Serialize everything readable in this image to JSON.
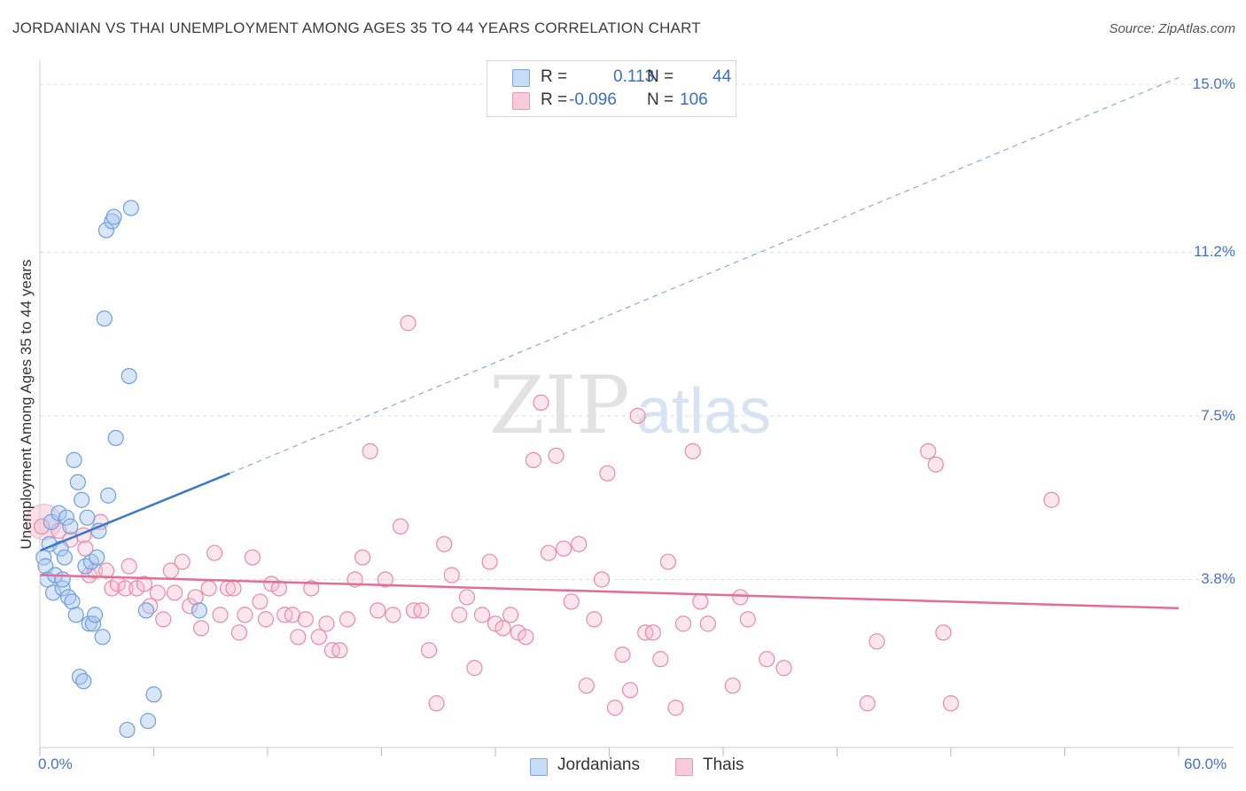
{
  "header": {
    "title": "JORDANIAN VS THAI UNEMPLOYMENT AMONG AGES 35 TO 44 YEARS CORRELATION CHART",
    "source": "Source: ZipAtlas.com"
  },
  "watermark": {
    "zip": "ZIP",
    "atlas": "atlas"
  },
  "legend": {
    "rows": [
      {
        "r_label": "R =",
        "r_value": "0.113",
        "n_label": "N =",
        "n_value": "44"
      },
      {
        "r_label": "R =",
        "r_value": "-0.096",
        "n_label": "N =",
        "n_value": "106"
      }
    ]
  },
  "bottom_legend": {
    "jordanians": "Jordanians",
    "thais": "Thais"
  },
  "colors": {
    "jordanians_fill": "#a9c8f0",
    "jordanians_stroke": "#6f9fdc",
    "jordanians_line": "#3a78d0",
    "thais_fill": "#f5b8cc",
    "thais_stroke": "#e88aa9",
    "thais_line": "#e06e98",
    "axis_label": "#4472c4",
    "grid": "#dddddd"
  },
  "chart_data": {
    "type": "scatter",
    "title": "JORDANIAN VS THAI UNEMPLOYMENT AMONG AGES 35 TO 44 YEARS CORRELATION CHART",
    "xlabel": "",
    "ylabel": "Unemployment Among Ages 35 to 44 years",
    "xlim": [
      0,
      60
    ],
    "ylim": [
      0,
      15.4
    ],
    "x_tick_labels": [
      "0.0%",
      "60.0%"
    ],
    "y_ticks": [
      3.8,
      7.5,
      11.2,
      15.0
    ],
    "y_tick_labels": [
      "3.8%",
      "7.5%",
      "11.2%",
      "15.0%"
    ],
    "grid": true,
    "legend_position": "top-center",
    "series": [
      {
        "name": "Jordanians",
        "R": 0.113,
        "N": 44,
        "trend": {
          "x": [
            0,
            10
          ],
          "y": [
            4.45,
            6.2
          ],
          "extended_to": [
            60,
            15.15
          ]
        },
        "points": [
          [
            0.2,
            4.3
          ],
          [
            0.3,
            4.1
          ],
          [
            0.4,
            3.8
          ],
          [
            0.5,
            4.6
          ],
          [
            0.6,
            5.1
          ],
          [
            0.7,
            3.5
          ],
          [
            0.8,
            3.9
          ],
          [
            1.0,
            5.3
          ],
          [
            1.1,
            4.5
          ],
          [
            1.2,
            3.6
          ],
          [
            1.3,
            4.3
          ],
          [
            1.4,
            5.2
          ],
          [
            1.5,
            3.4
          ],
          [
            1.6,
            5.0
          ],
          [
            1.7,
            3.3
          ],
          [
            1.8,
            6.5
          ],
          [
            1.9,
            3.0
          ],
          [
            2.0,
            6.0
          ],
          [
            2.1,
            1.6
          ],
          [
            2.2,
            5.6
          ],
          [
            2.3,
            1.5
          ],
          [
            2.4,
            4.1
          ],
          [
            2.5,
            5.2
          ],
          [
            2.6,
            2.8
          ],
          [
            2.7,
            4.2
          ],
          [
            2.8,
            2.8
          ],
          [
            2.9,
            3.0
          ],
          [
            3.0,
            4.3
          ],
          [
            3.1,
            4.9
          ],
          [
            3.3,
            2.5
          ],
          [
            3.4,
            9.7
          ],
          [
            3.5,
            11.7
          ],
          [
            3.6,
            5.7
          ],
          [
            3.8,
            11.9
          ],
          [
            3.9,
            12.0
          ],
          [
            4.0,
            7.0
          ],
          [
            4.6,
            0.4
          ],
          [
            4.7,
            8.4
          ],
          [
            4.8,
            12.2
          ],
          [
            5.6,
            3.1
          ],
          [
            5.7,
            0.6
          ],
          [
            6.0,
            1.2
          ],
          [
            8.4,
            3.1
          ],
          [
            1.2,
            3.8
          ]
        ]
      },
      {
        "name": "Thais",
        "R": -0.096,
        "N": 106,
        "trend": {
          "x": [
            0,
            60
          ],
          "y": [
            3.9,
            3.15
          ]
        },
        "points": [
          [
            0.1,
            5.0
          ],
          [
            1.0,
            4.9
          ],
          [
            1.6,
            4.7
          ],
          [
            2.3,
            4.8
          ],
          [
            2.4,
            4.5
          ],
          [
            2.6,
            3.9
          ],
          [
            2.9,
            4.0
          ],
          [
            3.2,
            5.1
          ],
          [
            3.5,
            4.0
          ],
          [
            3.8,
            3.6
          ],
          [
            4.1,
            3.7
          ],
          [
            4.5,
            3.6
          ],
          [
            4.7,
            4.1
          ],
          [
            5.1,
            3.6
          ],
          [
            5.5,
            3.7
          ],
          [
            5.8,
            3.2
          ],
          [
            6.2,
            3.5
          ],
          [
            6.5,
            2.9
          ],
          [
            6.9,
            4.0
          ],
          [
            7.1,
            3.5
          ],
          [
            7.5,
            4.2
          ],
          [
            7.9,
            3.2
          ],
          [
            8.2,
            3.4
          ],
          [
            8.5,
            2.7
          ],
          [
            8.9,
            3.6
          ],
          [
            9.2,
            4.4
          ],
          [
            9.5,
            3.0
          ],
          [
            9.9,
            3.6
          ],
          [
            10.2,
            3.6
          ],
          [
            10.5,
            2.6
          ],
          [
            10.8,
            3.0
          ],
          [
            11.2,
            4.3
          ],
          [
            11.6,
            3.3
          ],
          [
            11.9,
            2.9
          ],
          [
            12.2,
            3.7
          ],
          [
            12.6,
            3.6
          ],
          [
            12.9,
            3.0
          ],
          [
            13.3,
            3.0
          ],
          [
            13.6,
            2.5
          ],
          [
            14.0,
            2.9
          ],
          [
            14.3,
            3.6
          ],
          [
            14.7,
            2.5
          ],
          [
            15.1,
            2.8
          ],
          [
            15.4,
            2.2
          ],
          [
            15.8,
            2.2
          ],
          [
            16.2,
            2.9
          ],
          [
            16.6,
            3.8
          ],
          [
            17.0,
            4.3
          ],
          [
            17.4,
            6.7
          ],
          [
            17.8,
            3.1
          ],
          [
            18.2,
            3.8
          ],
          [
            18.6,
            3.0
          ],
          [
            19.0,
            5.0
          ],
          [
            19.4,
            9.6
          ],
          [
            19.7,
            3.1
          ],
          [
            20.1,
            3.1
          ],
          [
            20.5,
            2.2
          ],
          [
            20.9,
            1.0
          ],
          [
            21.3,
            4.6
          ],
          [
            21.7,
            3.9
          ],
          [
            22.1,
            3.0
          ],
          [
            22.5,
            3.4
          ],
          [
            22.9,
            1.8
          ],
          [
            23.3,
            3.0
          ],
          [
            23.7,
            4.2
          ],
          [
            24.0,
            2.8
          ],
          [
            24.4,
            2.7
          ],
          [
            24.8,
            3.0
          ],
          [
            25.2,
            2.6
          ],
          [
            25.6,
            2.5
          ],
          [
            26.0,
            6.5
          ],
          [
            26.4,
            7.8
          ],
          [
            26.8,
            4.4
          ],
          [
            27.2,
            6.6
          ],
          [
            27.6,
            4.5
          ],
          [
            28.0,
            3.3
          ],
          [
            28.4,
            4.6
          ],
          [
            28.8,
            1.4
          ],
          [
            29.2,
            2.9
          ],
          [
            29.6,
            3.8
          ],
          [
            29.9,
            6.2
          ],
          [
            30.3,
            0.9
          ],
          [
            30.7,
            2.1
          ],
          [
            31.1,
            1.3
          ],
          [
            31.5,
            7.5
          ],
          [
            31.9,
            2.6
          ],
          [
            32.3,
            2.6
          ],
          [
            32.7,
            2.0
          ],
          [
            33.1,
            4.2
          ],
          [
            33.5,
            0.9
          ],
          [
            33.9,
            2.8
          ],
          [
            34.4,
            6.7
          ],
          [
            34.8,
            3.3
          ],
          [
            35.2,
            2.8
          ],
          [
            36.5,
            1.4
          ],
          [
            36.9,
            3.4
          ],
          [
            37.3,
            2.9
          ],
          [
            38.3,
            2.0
          ],
          [
            39.2,
            1.8
          ],
          [
            43.6,
            1.0
          ],
          [
            44.1,
            2.4
          ],
          [
            46.8,
            6.7
          ],
          [
            47.2,
            6.4
          ],
          [
            47.6,
            2.6
          ],
          [
            48.0,
            1.0
          ],
          [
            53.3,
            5.6
          ]
        ]
      }
    ]
  }
}
